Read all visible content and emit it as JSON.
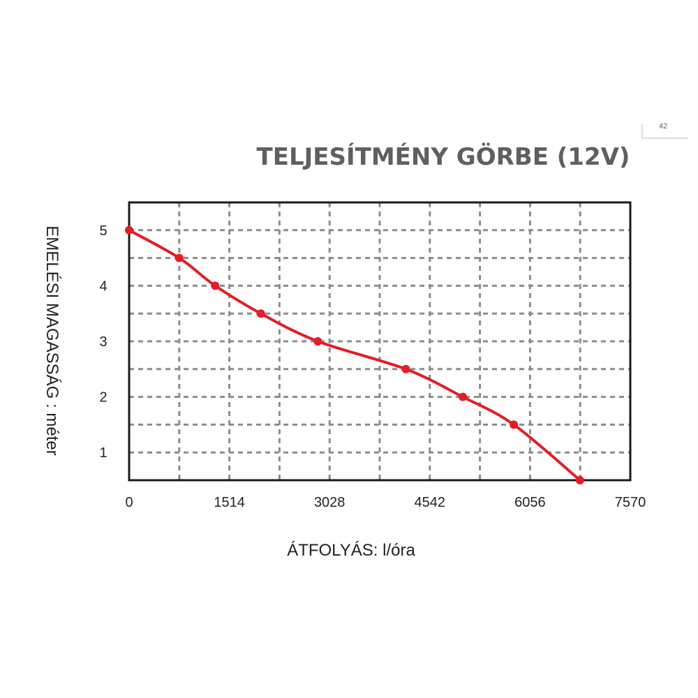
{
  "chart_data": {
    "type": "line",
    "title": "TELJESÍTMÉNY GÖRBE (12V)",
    "xlabel": "ÁTFOLYÁS: l/óra",
    "ylabel": "EMELÉSI MAGASSÁG : méter",
    "xlim": [
      0,
      7570
    ],
    "ylim": [
      0.5,
      5.5
    ],
    "x_ticks": [
      "0",
      "1514",
      "3028",
      "4542",
      "6056",
      "7570"
    ],
    "y_ticks": [
      "1",
      "2",
      "3",
      "4",
      "5"
    ],
    "grid": true,
    "series": [
      {
        "color": "#e31e24",
        "x": [
          0,
          757,
          1300,
          1990,
          2850,
          4180,
          5040,
          5810,
          6810
        ],
        "y": [
          5,
          4.5,
          4,
          3.5,
          3,
          2.5,
          2,
          1.5,
          0.5
        ]
      }
    ]
  },
  "corner_note": "42"
}
